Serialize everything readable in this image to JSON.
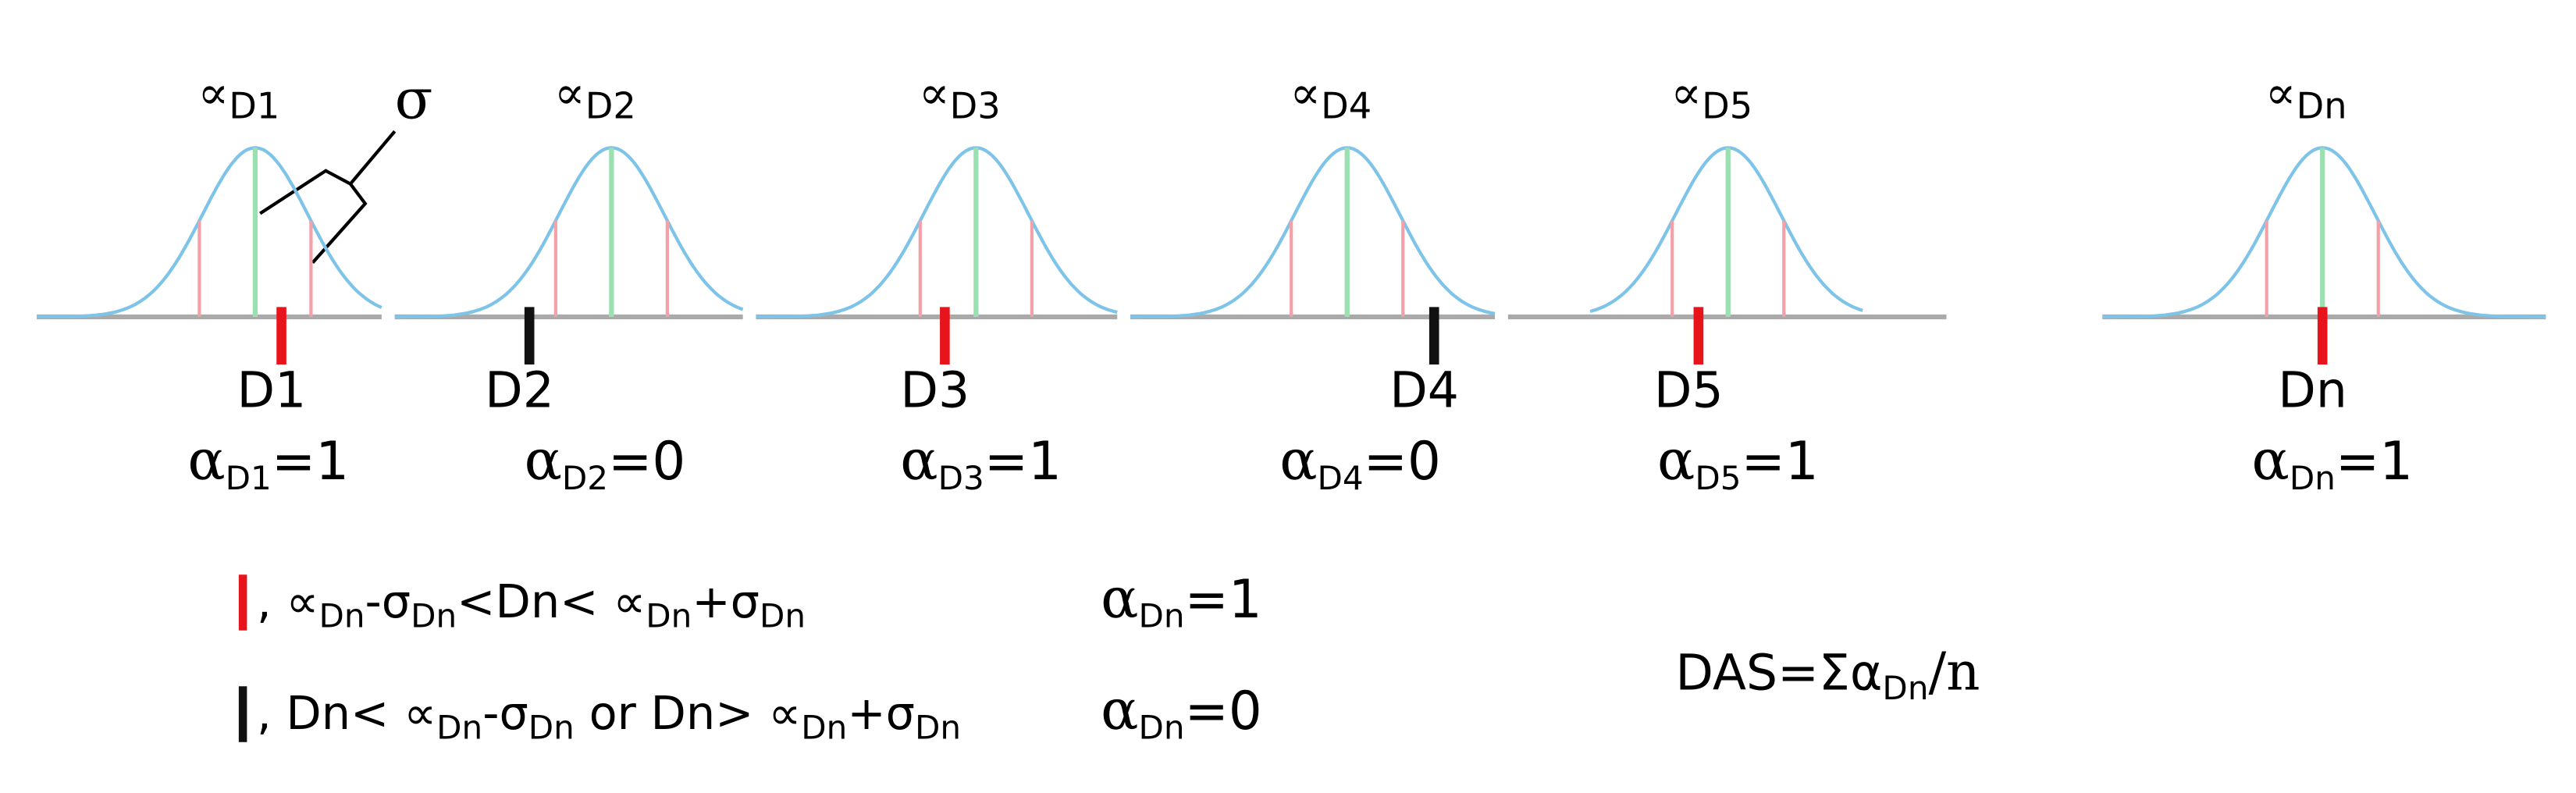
{
  "panels": [
    {
      "mean_symbol": "∝",
      "mean_sub": "D1",
      "marker": "D1",
      "marker_color": "#e8141c",
      "alpha_symbol": "α",
      "alpha_sub": "D1",
      "alpha_value": "=1"
    },
    {
      "mean_symbol": "∝",
      "mean_sub": "D2",
      "marker": "D2",
      "marker_color": "#111111",
      "alpha_symbol": "α",
      "alpha_sub": "D2",
      "alpha_value": "=0"
    },
    {
      "mean_symbol": "∝",
      "mean_sub": "D3",
      "marker": "D3",
      "marker_color": "#e8141c",
      "alpha_symbol": "α",
      "alpha_sub": "D3",
      "alpha_value": "=1"
    },
    {
      "mean_symbol": "∝",
      "mean_sub": "D4",
      "marker": "D4",
      "marker_color": "#111111",
      "alpha_symbol": "α",
      "alpha_sub": "D4",
      "alpha_value": "=0"
    },
    {
      "mean_symbol": "∝",
      "mean_sub": "D5",
      "marker": "D5",
      "marker_color": "#e8141c",
      "alpha_symbol": "α",
      "alpha_sub": "D5",
      "alpha_value": "=1"
    },
    {
      "mean_symbol": "∝",
      "mean_sub": "Dn",
      "marker": "Dn",
      "marker_color": "#e8141c",
      "alpha_symbol": "α",
      "alpha_sub": "Dn",
      "alpha_value": "=1"
    }
  ],
  "sigma_label": "σ",
  "legend": [
    {
      "color": "#e8141c",
      "parts": [
        [
          ", ∝",
          "Dn"
        ],
        [
          "-σ",
          "Dn"
        ],
        [
          "<Dn< ∝",
          "Dn"
        ],
        [
          "+σ",
          "Dn"
        ]
      ],
      "result": [
        "α",
        "Dn",
        "=1"
      ]
    },
    {
      "color": "#111111",
      "parts": [
        [
          ", Dn< ∝",
          "Dn"
        ],
        [
          "-σ",
          "Dn"
        ],
        [
          " or Dn> ∝",
          "Dn"
        ],
        [
          "+σ",
          "Dn"
        ]
      ],
      "result": [
        "α",
        "Dn",
        "=0"
      ]
    }
  ],
  "formula": [
    "DAS=Σα",
    "Dn",
    "/n"
  ]
}
